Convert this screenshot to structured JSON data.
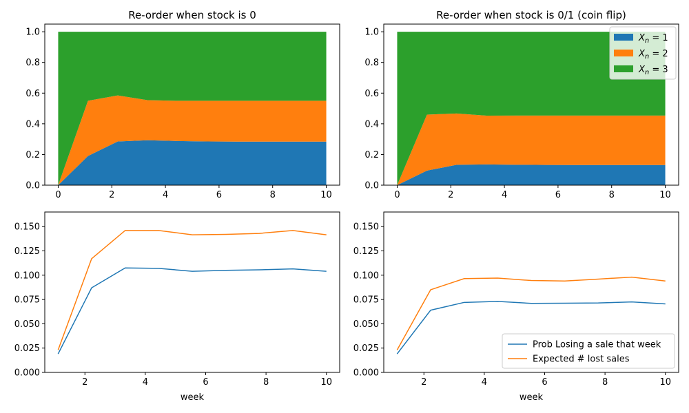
{
  "chart_data": [
    {
      "type": "area",
      "title": "Re-order when stock is 0",
      "xlabel": "",
      "ylabel": "",
      "xlim": [
        -0.5,
        10.5
      ],
      "ylim": [
        0,
        1.05
      ],
      "xticks": [
        0,
        2,
        4,
        6,
        8,
        10
      ],
      "yticks": [
        0.0,
        0.2,
        0.4,
        0.6,
        0.8,
        1.0
      ],
      "xtick_labels": [
        "0",
        "2",
        "4",
        "6",
        "8",
        "10"
      ],
      "ytick_labels": [
        "0.0",
        "0.2",
        "0.4",
        "0.6",
        "0.8",
        "1.0"
      ],
      "x": [
        0,
        1.111,
        2.222,
        3.333,
        4.444,
        5.556,
        6.667,
        7.778,
        8.889,
        10
      ],
      "stacked": true,
      "series": [
        {
          "name": "",
          "color": "#1f77b4",
          "values": [
            0.0,
            0.19,
            0.285,
            0.293,
            0.288,
            0.285,
            0.284,
            0.284,
            0.284,
            0.284
          ]
        },
        {
          "name": "",
          "color": "#ff7f0e",
          "values": [
            0.0,
            0.36,
            0.3,
            0.261,
            0.262,
            0.265,
            0.266,
            0.266,
            0.266,
            0.266
          ]
        },
        {
          "name": "",
          "color": "#2ca02c",
          "values": [
            1.0,
            0.45,
            0.415,
            0.446,
            0.45,
            0.45,
            0.45,
            0.45,
            0.45,
            0.45
          ]
        }
      ],
      "grid": false
    },
    {
      "type": "area",
      "title": "Re-order when stock is 0/1 (coin flip)",
      "xlabel": "",
      "ylabel": "",
      "xlim": [
        -0.5,
        10.5
      ],
      "ylim": [
        0,
        1.05
      ],
      "xticks": [
        0,
        2,
        4,
        6,
        8,
        10
      ],
      "yticks": [
        0.0,
        0.2,
        0.4,
        0.6,
        0.8,
        1.0
      ],
      "xtick_labels": [
        "0",
        "2",
        "4",
        "6",
        "8",
        "10"
      ],
      "ytick_labels": [
        "0.0",
        "0.2",
        "0.4",
        "0.6",
        "0.8",
        "1.0"
      ],
      "x": [
        0,
        1.111,
        2.222,
        3.333,
        4.444,
        5.556,
        6.667,
        7.778,
        8.889,
        10
      ],
      "stacked": true,
      "series": [
        {
          "name": "X_n = 1",
          "color": "#1f77b4",
          "values": [
            0.0,
            0.095,
            0.133,
            0.135,
            0.133,
            0.132,
            0.131,
            0.131,
            0.131,
            0.131
          ]
        },
        {
          "name": "X_n = 2",
          "color": "#ff7f0e",
          "values": [
            0.0,
            0.365,
            0.334,
            0.318,
            0.321,
            0.322,
            0.323,
            0.323,
            0.323,
            0.323
          ]
        },
        {
          "name": "X_n = 3",
          "color": "#2ca02c",
          "values": [
            1.0,
            0.54,
            0.533,
            0.547,
            0.546,
            0.546,
            0.546,
            0.546,
            0.546,
            0.546
          ]
        }
      ],
      "legend": {
        "placement": "top-right",
        "entries": [
          {
            "var": "X",
            "sub": "n",
            "rhs": "= 1",
            "color": "#1f77b4"
          },
          {
            "var": "X",
            "sub": "n",
            "rhs": "= 2",
            "color": "#ff7f0e"
          },
          {
            "var": "X",
            "sub": "n",
            "rhs": "= 3",
            "color": "#2ca02c"
          }
        ]
      },
      "grid": false
    },
    {
      "type": "line",
      "title": "",
      "xlabel": "week",
      "ylabel": "",
      "xlim": [
        0.67,
        10.44
      ],
      "ylim": [
        0,
        0.165
      ],
      "xticks": [
        2,
        4,
        6,
        8,
        10
      ],
      "yticks": [
        0.0,
        0.025,
        0.05,
        0.075,
        0.1,
        0.125,
        0.15
      ],
      "xtick_labels": [
        "2",
        "4",
        "6",
        "8",
        "10"
      ],
      "ytick_labels": [
        "0.000",
        "0.025",
        "0.050",
        "0.075",
        "0.100",
        "0.125",
        "0.150"
      ],
      "x": [
        1.111,
        2.222,
        3.333,
        4.444,
        5.556,
        6.667,
        7.778,
        8.889,
        10
      ],
      "series": [
        {
          "name": "Prob Losing a sale that week",
          "color": "#1f77b4",
          "values": [
            0.019,
            0.087,
            0.1075,
            0.107,
            0.104,
            0.105,
            0.1055,
            0.1065,
            0.104
          ]
        },
        {
          "name": "Expected # lost sales",
          "color": "#ff7f0e",
          "values": [
            0.023,
            0.117,
            0.146,
            0.146,
            0.1415,
            0.142,
            0.143,
            0.146,
            0.1415
          ]
        }
      ],
      "grid": false
    },
    {
      "type": "line",
      "title": "",
      "xlabel": "week",
      "ylabel": "",
      "xlim": [
        0.67,
        10.44
      ],
      "ylim": [
        0,
        0.165
      ],
      "xticks": [
        2,
        4,
        6,
        8,
        10
      ],
      "yticks": [
        0.0,
        0.025,
        0.05,
        0.075,
        0.1,
        0.125,
        0.15
      ],
      "xtick_labels": [
        "2",
        "4",
        "6",
        "8",
        "10"
      ],
      "ytick_labels": [
        "0.000",
        "0.025",
        "0.050",
        "0.075",
        "0.100",
        "0.125",
        "0.150"
      ],
      "x": [
        1.111,
        2.222,
        3.333,
        4.444,
        5.556,
        6.667,
        7.778,
        8.889,
        10
      ],
      "series": [
        {
          "name": "Prob Losing a sale that week",
          "color": "#1f77b4",
          "values": [
            0.019,
            0.064,
            0.072,
            0.073,
            0.071,
            0.0712,
            0.0714,
            0.0725,
            0.0705
          ]
        },
        {
          "name": "Expected # lost sales",
          "color": "#ff7f0e",
          "values": [
            0.023,
            0.085,
            0.0965,
            0.097,
            0.0945,
            0.094,
            0.096,
            0.098,
            0.094
          ]
        }
      ],
      "legend": {
        "placement": "lower-right",
        "entries": [
          {
            "label": "Prob Losing a sale that week",
            "color": "#1f77b4"
          },
          {
            "label": "Expected # lost sales",
            "color": "#ff7f0e"
          }
        ]
      },
      "grid": false
    }
  ]
}
